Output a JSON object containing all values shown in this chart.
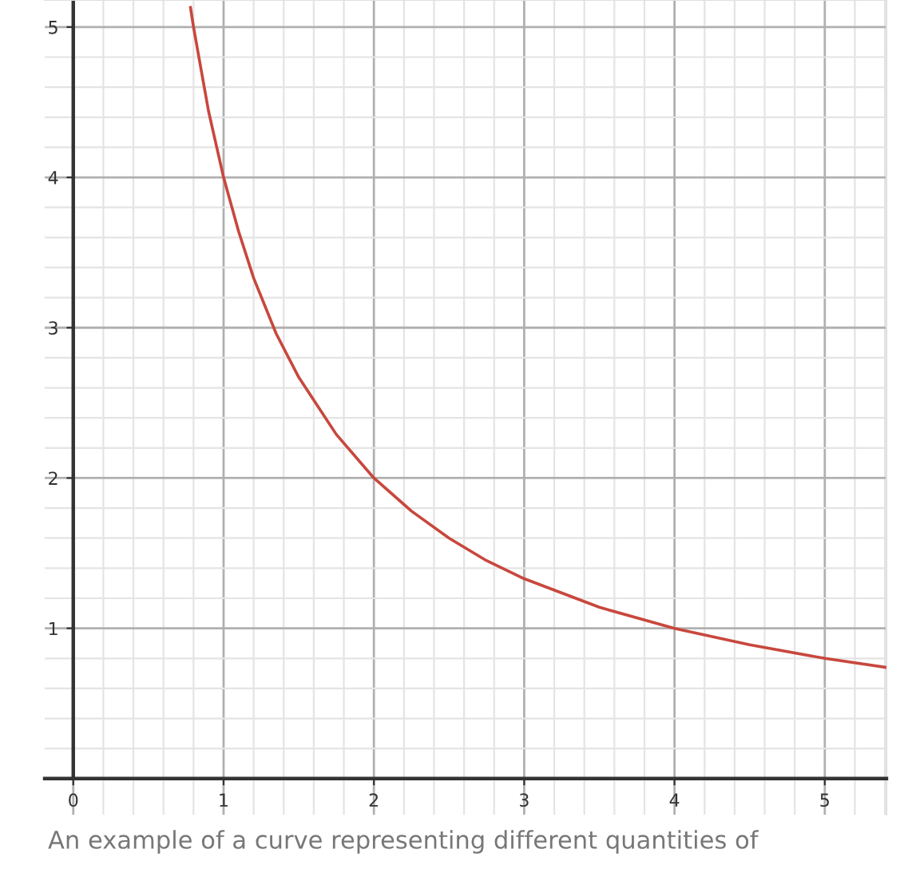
{
  "chart_data": {
    "type": "line",
    "x": [
      0.78,
      0.8,
      0.9,
      1.0,
      1.1,
      1.2,
      1.35,
      1.5,
      1.75,
      2.0,
      2.25,
      2.5,
      2.75,
      3.0,
      3.5,
      4.0,
      4.5,
      5.0,
      5.41
    ],
    "series": [
      {
        "color": "#c8473d",
        "values": [
          5.13,
          5.0,
          4.44,
          4.0,
          3.64,
          3.33,
          2.96,
          2.67,
          2.29,
          2.0,
          1.78,
          1.6,
          1.45,
          1.33,
          1.14,
          1.0,
          0.89,
          0.8,
          0.74
        ]
      }
    ],
    "xlim": [
      -0.19,
      5.41
    ],
    "ylim": [
      -0.24,
      5.18
    ],
    "xticks": [
      0,
      1,
      2,
      3,
      4,
      5
    ],
    "yticks": [
      1,
      2,
      3,
      4,
      5
    ],
    "grid": true,
    "marker": "none",
    "line_style": "solid",
    "annotations": [
      "An example of a curve representing different quantities of"
    ]
  }
}
